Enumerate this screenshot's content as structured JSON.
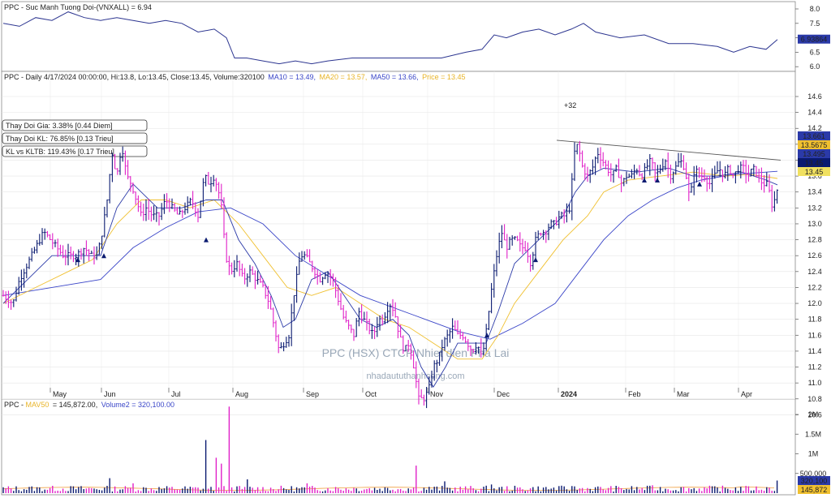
{
  "ticker": "PPC",
  "colors": {
    "up": "#0a1a70",
    "down": "#e020c8",
    "ma10": "#2b3aa8",
    "ma20": "#f0c030",
    "ma50": "#3b46c8",
    "rs": "#2c3590",
    "vol_ma": "#f0a040",
    "trend": "#555555"
  },
  "rs_panel": {
    "title_prefix": "PPC - ",
    "title": "Suc Manh Tuong Doi-(VNXALL) = 6.94",
    "last_badge": "6.93864",
    "ticks": [
      "8.0",
      "7.5",
      "7.0",
      "6.5",
      "6.0"
    ]
  },
  "price_panel": {
    "header_main": "PPC - Daily 4/17/2024 00:00:00, Hi:13.8, Lo:13.45, Close:13.45, Volume:320100",
    "header_ma10": "MA10 = 13.49,",
    "header_ma20": "MA20 = 13.57,",
    "header_ma50": "MA50 = 13.66,",
    "header_price": "Price = 13.45",
    "ticks": [
      "14.6",
      "14.4",
      "14.2",
      "14.0",
      "13.8",
      "13.6",
      "13.4",
      "13.2",
      "13.0",
      "12.8",
      "12.6",
      "12.4",
      "12.2",
      "12.0",
      "11.8",
      "11.6",
      "11.4",
      "11.2",
      "11.0",
      "10.8",
      "10.6"
    ],
    "badges": [
      "13.661",
      "13.5675",
      "13.495",
      "13.45",
      "13.45"
    ],
    "annotation": "+32",
    "info_boxes": [
      "Thay Doi Gia: 3.38% [0.44 Diem]",
      "Thay Doi KL: 76.85% [0.13 Trieu]",
      "KL vs KLTB: 119.43% [0.17 Trieu]"
    ],
    "watermark_title": "PPC (HSX) CTCP Nhiet dien Pha Lai",
    "watermark_site": "nhadaututhanhcong.com"
  },
  "months": [
    "May",
    "Jun",
    "Jul",
    "Aug",
    "Sep",
    "Oct",
    "Nov",
    "Dec",
    "2024",
    "Feb",
    "Mar",
    "Apr"
  ],
  "volume_panel": {
    "header_prefix": "PPC - ",
    "header_mav": "MAV50",
    "header_mav_value": "= 145,872.00,",
    "header_vol2": "Volume2 = 320,100.00",
    "ticks": [
      "2M",
      "1.5M",
      "1M",
      "500,000"
    ],
    "badges": [
      "320,100",
      "145,872"
    ]
  },
  "chart_data": {
    "type": "candlestick",
    "price_range": [
      10.4,
      14.7
    ],
    "rs_range": [
      5.9,
      8.2
    ],
    "volume_range": [
      0,
      2300000
    ],
    "series_summary": {
      "last_close": 13.45,
      "hi": 13.8,
      "lo": 13.45,
      "volume": 320100,
      "ma10": 13.49,
      "ma20": 13.57,
      "ma50": 13.66,
      "mav50": 145872,
      "rs": 6.94
    },
    "price_path": [
      [
        0,
        12.1
      ],
      [
        12,
        12.0
      ],
      [
        20,
        12.3
      ],
      [
        30,
        12.5
      ],
      [
        40,
        12.7
      ],
      [
        50,
        12.9
      ],
      [
        58,
        12.8
      ],
      [
        66,
        12.7
      ],
      [
        74,
        12.6
      ],
      [
        82,
        12.6
      ],
      [
        90,
        12.6
      ],
      [
        100,
        12.7
      ],
      [
        108,
        12.6
      ],
      [
        116,
        12.6
      ],
      [
        122,
        12.9
      ],
      [
        128,
        13.3
      ],
      [
        134,
        13.9
      ],
      [
        140,
        13.6
      ],
      [
        146,
        14.0
      ],
      [
        152,
        13.6
      ],
      [
        158,
        13.5
      ],
      [
        164,
        13.3
      ],
      [
        170,
        13.1
      ],
      [
        176,
        13.2
      ],
      [
        184,
        13.1
      ],
      [
        192,
        13.1
      ],
      [
        200,
        13.3
      ],
      [
        208,
        13.2
      ],
      [
        216,
        13.1
      ],
      [
        224,
        13.2
      ],
      [
        232,
        13.3
      ],
      [
        240,
        13.1
      ],
      [
        248,
        13.6
      ],
      [
        254,
        13.5
      ],
      [
        260,
        13.6
      ],
      [
        268,
        13.3
      ],
      [
        274,
        12.6
      ],
      [
        280,
        12.4
      ],
      [
        288,
        12.5
      ],
      [
        296,
        12.3
      ],
      [
        304,
        12.4
      ],
      [
        312,
        12.3
      ],
      [
        320,
        12.2
      ],
      [
        328,
        12.0
      ],
      [
        334,
        11.7
      ],
      [
        340,
        11.4
      ],
      [
        346,
        11.5
      ],
      [
        352,
        11.6
      ],
      [
        358,
        12.1
      ],
      [
        366,
        12.6
      ],
      [
        372,
        12.6
      ],
      [
        378,
        12.5
      ],
      [
        384,
        12.4
      ],
      [
        390,
        12.3
      ],
      [
        398,
        12.4
      ],
      [
        406,
        12.3
      ],
      [
        414,
        12.0
      ],
      [
        420,
        11.8
      ],
      [
        426,
        11.7
      ],
      [
        432,
        11.6
      ],
      [
        438,
        11.9
      ],
      [
        444,
        11.8
      ],
      [
        450,
        11.7
      ],
      [
        456,
        11.6
      ],
      [
        462,
        11.8
      ],
      [
        468,
        11.8
      ],
      [
        476,
        12.0
      ],
      [
        482,
        11.9
      ],
      [
        488,
        11.6
      ],
      [
        494,
        11.4
      ],
      [
        500,
        11.5
      ],
      [
        506,
        11.2
      ],
      [
        512,
        10.8
      ],
      [
        518,
        10.8
      ],
      [
        524,
        10.9
      ],
      [
        530,
        11.2
      ],
      [
        536,
        11.3
      ],
      [
        542,
        11.5
      ],
      [
        548,
        11.6
      ],
      [
        554,
        11.7
      ],
      [
        560,
        11.6
      ],
      [
        566,
        11.6
      ],
      [
        572,
        11.5
      ],
      [
        578,
        11.4
      ],
      [
        584,
        11.5
      ],
      [
        590,
        11.3
      ],
      [
        596,
        11.7
      ],
      [
        602,
        12.2
      ],
      [
        608,
        12.6
      ],
      [
        614,
        12.9
      ],
      [
        620,
        12.7
      ],
      [
        626,
        12.8
      ],
      [
        632,
        12.8
      ],
      [
        638,
        12.7
      ],
      [
        644,
        12.7
      ],
      [
        650,
        12.5
      ],
      [
        656,
        12.8
      ],
      [
        662,
        12.9
      ],
      [
        668,
        12.9
      ],
      [
        674,
        13.0
      ],
      [
        680,
        13.0
      ],
      [
        686,
        13.1
      ],
      [
        692,
        13.1
      ],
      [
        698,
        13.2
      ],
      [
        704,
        13.9
      ],
      [
        708,
        14.0
      ],
      [
        714,
        13.7
      ],
      [
        720,
        13.6
      ],
      [
        726,
        13.7
      ],
      [
        732,
        13.9
      ],
      [
        738,
        13.8
      ],
      [
        744,
        13.7
      ],
      [
        750,
        13.6
      ],
      [
        756,
        13.7
      ],
      [
        762,
        13.5
      ],
      [
        768,
        13.6
      ],
      [
        774,
        13.6
      ],
      [
        780,
        13.7
      ],
      [
        786,
        13.6
      ],
      [
        792,
        13.7
      ],
      [
        798,
        13.8
      ],
      [
        804,
        13.6
      ],
      [
        810,
        13.7
      ],
      [
        816,
        13.8
      ],
      [
        822,
        13.6
      ],
      [
        828,
        13.7
      ],
      [
        834,
        13.8
      ],
      [
        840,
        13.7
      ],
      [
        846,
        13.3
      ],
      [
        852,
        13.7
      ],
      [
        858,
        13.6
      ],
      [
        864,
        13.6
      ],
      [
        870,
        13.5
      ],
      [
        876,
        13.6
      ],
      [
        882,
        13.7
      ],
      [
        888,
        13.6
      ],
      [
        894,
        13.7
      ],
      [
        900,
        13.6
      ],
      [
        906,
        13.7
      ],
      [
        912,
        13.7
      ],
      [
        918,
        13.6
      ],
      [
        924,
        13.7
      ],
      [
        930,
        13.6
      ],
      [
        936,
        13.5
      ],
      [
        942,
        13.5
      ],
      [
        948,
        13.2
      ],
      [
        954,
        13.45
      ]
    ],
    "ma10_path": [
      [
        0,
        12.0
      ],
      [
        30,
        12.3
      ],
      [
        60,
        12.6
      ],
      [
        90,
        12.6
      ],
      [
        120,
        12.6
      ],
      [
        140,
        13.2
      ],
      [
        160,
        13.5
      ],
      [
        190,
        13.2
      ],
      [
        220,
        13.2
      ],
      [
        250,
        13.3
      ],
      [
        270,
        13.3
      ],
      [
        290,
        12.8
      ],
      [
        310,
        12.5
      ],
      [
        330,
        12.1
      ],
      [
        345,
        11.7
      ],
      [
        360,
        11.8
      ],
      [
        380,
        12.3
      ],
      [
        400,
        12.4
      ],
      [
        420,
        12.1
      ],
      [
        440,
        11.8
      ],
      [
        460,
        11.7
      ],
      [
        480,
        11.8
      ],
      [
        500,
        11.6
      ],
      [
        515,
        11.2
      ],
      [
        530,
        10.95
      ],
      [
        545,
        11.2
      ],
      [
        560,
        11.5
      ],
      [
        580,
        11.5
      ],
      [
        595,
        11.5
      ],
      [
        610,
        11.9
      ],
      [
        630,
        12.5
      ],
      [
        650,
        12.7
      ],
      [
        670,
        12.9
      ],
      [
        690,
        13.1
      ],
      [
        705,
        13.4
      ],
      [
        720,
        13.6
      ],
      [
        740,
        13.7
      ],
      [
        780,
        13.65
      ],
      [
        820,
        13.7
      ],
      [
        850,
        13.6
      ],
      [
        880,
        13.6
      ],
      [
        910,
        13.65
      ],
      [
        940,
        13.55
      ],
      [
        954,
        13.49
      ]
    ],
    "ma20_path": [
      [
        0,
        12.0
      ],
      [
        40,
        12.2
      ],
      [
        80,
        12.4
      ],
      [
        110,
        12.55
      ],
      [
        140,
        13.0
      ],
      [
        170,
        13.3
      ],
      [
        200,
        13.3
      ],
      [
        230,
        13.2
      ],
      [
        260,
        13.3
      ],
      [
        290,
        13.0
      ],
      [
        320,
        12.6
      ],
      [
        350,
        12.2
      ],
      [
        380,
        12.1
      ],
      [
        410,
        12.2
      ],
      [
        440,
        12.0
      ],
      [
        470,
        11.8
      ],
      [
        500,
        11.7
      ],
      [
        530,
        11.5
      ],
      [
        560,
        11.3
      ],
      [
        590,
        11.3
      ],
      [
        610,
        11.6
      ],
      [
        630,
        12.0
      ],
      [
        660,
        12.4
      ],
      [
        690,
        12.8
      ],
      [
        720,
        13.1
      ],
      [
        740,
        13.4
      ],
      [
        770,
        13.55
      ],
      [
        810,
        13.6
      ],
      [
        850,
        13.65
      ],
      [
        890,
        13.6
      ],
      [
        920,
        13.62
      ],
      [
        954,
        13.57
      ]
    ],
    "ma50_path": [
      [
        0,
        12.1
      ],
      [
        60,
        12.2
      ],
      [
        120,
        12.3
      ],
      [
        160,
        12.7
      ],
      [
        200,
        12.95
      ],
      [
        240,
        13.15
      ],
      [
        280,
        13.2
      ],
      [
        320,
        13.0
      ],
      [
        360,
        12.6
      ],
      [
        400,
        12.35
      ],
      [
        440,
        12.1
      ],
      [
        480,
        11.95
      ],
      [
        520,
        11.8
      ],
      [
        560,
        11.65
      ],
      [
        600,
        11.55
      ],
      [
        640,
        11.75
      ],
      [
        680,
        12.0
      ],
      [
        710,
        12.4
      ],
      [
        740,
        12.8
      ],
      [
        770,
        13.1
      ],
      [
        800,
        13.3
      ],
      [
        830,
        13.45
      ],
      [
        860,
        13.55
      ],
      [
        900,
        13.62
      ],
      [
        954,
        13.66
      ]
    ],
    "trendline": [
      [
        682,
        14.05
      ],
      [
        958,
        13.8
      ]
    ],
    "rs_path": [
      [
        0,
        7.5
      ],
      [
        20,
        7.4
      ],
      [
        40,
        7.7
      ],
      [
        60,
        7.6
      ],
      [
        80,
        7.9
      ],
      [
        100,
        7.7
      ],
      [
        120,
        7.6
      ],
      [
        140,
        7.7
      ],
      [
        160,
        7.6
      ],
      [
        180,
        7.5
      ],
      [
        200,
        7.6
      ],
      [
        220,
        7.5
      ],
      [
        240,
        7.2
      ],
      [
        260,
        7.3
      ],
      [
        275,
        7.0
      ],
      [
        285,
        6.3
      ],
      [
        300,
        6.3
      ],
      [
        320,
        6.2
      ],
      [
        340,
        6.1
      ],
      [
        360,
        6.2
      ],
      [
        380,
        6.1
      ],
      [
        400,
        6.2
      ],
      [
        430,
        6.3
      ],
      [
        460,
        6.3
      ],
      [
        500,
        6.3
      ],
      [
        540,
        6.3
      ],
      [
        570,
        6.5
      ],
      [
        590,
        6.6
      ],
      [
        605,
        7.1
      ],
      [
        620,
        7.0
      ],
      [
        640,
        7.2
      ],
      [
        660,
        7.3
      ],
      [
        680,
        7.1
      ],
      [
        700,
        7.3
      ],
      [
        715,
        7.5
      ],
      [
        730,
        7.2
      ],
      [
        760,
        7.0
      ],
      [
        790,
        7.1
      ],
      [
        820,
        6.8
      ],
      [
        850,
        6.8
      ],
      [
        880,
        6.7
      ],
      [
        900,
        6.5
      ],
      [
        920,
        6.7
      ],
      [
        940,
        6.6
      ],
      [
        954,
        6.94
      ]
    ],
    "volume_spikes": [
      [
        130,
        380000
      ],
      [
        160,
        250000
      ],
      [
        250,
        1350000
      ],
      [
        262,
        900000
      ],
      [
        268,
        750000
      ],
      [
        278,
        2200000
      ],
      [
        300,
        350000
      ],
      [
        375,
        250000
      ],
      [
        510,
        700000
      ],
      [
        545,
        300000
      ],
      [
        600,
        220000
      ],
      [
        700,
        180000
      ],
      [
        800,
        200000
      ],
      [
        954,
        320100
      ]
    ],
    "up_arrows": [
      [
        92,
        12.55
      ],
      [
        124,
        12.6
      ],
      [
        250,
        12.8
      ],
      [
        596,
        11.6
      ],
      [
        656,
        12.55
      ],
      [
        790,
        13.55
      ],
      [
        806,
        13.55
      ],
      [
        858,
        13.5
      ]
    ]
  }
}
